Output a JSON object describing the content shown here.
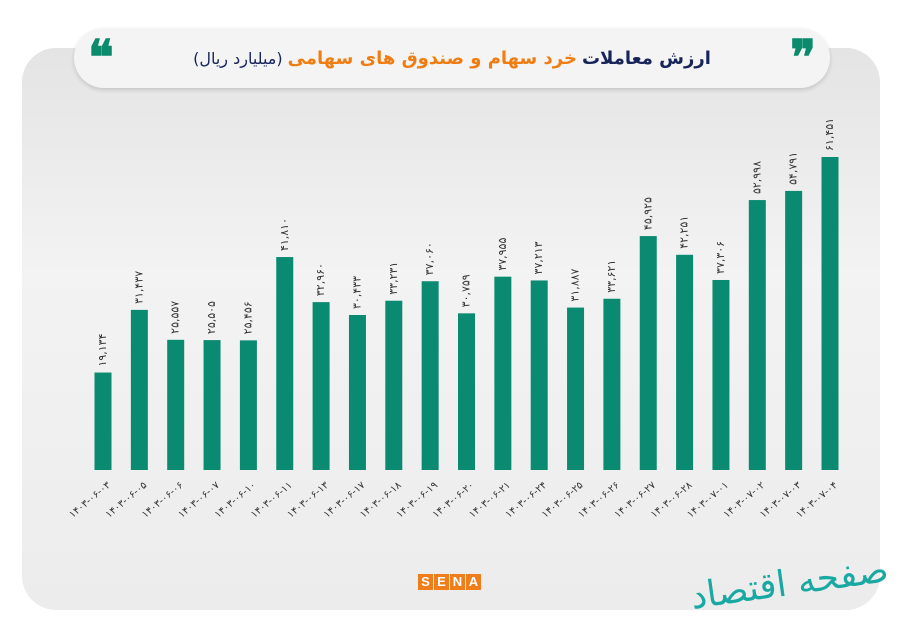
{
  "header": {
    "title_part1": "ارزش معاملات",
    "title_part2": "خرد سهام و صندوق های سهامی",
    "unit": "(میلیارد ریال)"
  },
  "colors": {
    "bar": "#0b8a72",
    "title_dark": "#16245a",
    "title_orange": "#f07d12"
  },
  "chart_data": {
    "type": "bar",
    "title": "ارزش معاملات خرد سهام و صندوق های سهامی (میلیارد ریال)",
    "categories": [
      "۱۴۰۳-۰۶-۰۳",
      "۱۴۰۳-۰۶-۰۵",
      "۱۴۰۳-۰۶-۰۶",
      "۱۴۰۳-۰۶-۰۷",
      "۱۴۰۳-۰۶-۱۰",
      "۱۴۰۳-۰۶-۱۱",
      "۱۴۰۳-۰۶-۱۳",
      "۱۴۰۳-۰۶-۱۷",
      "۱۴۰۳-۰۶-۱۸",
      "۱۴۰۳-۰۶-۱۹",
      "۱۴۰۳-۰۶-۲۰",
      "۱۴۰۳-۰۶-۲۱",
      "۱۴۰۳-۰۶-۲۴",
      "۱۴۰۳-۰۶-۲۵",
      "۱۴۰۳-۰۶-۲۶",
      "۱۴۰۳-۰۶-۲۷",
      "۱۴۰۳-۰۶-۲۸",
      "۱۴۰۳-۰۷-۰۱",
      "۱۴۰۳-۰۷-۰۲",
      "۱۴۰۳-۰۷-۰۳",
      "۱۴۰۳-۰۷-۰۴"
    ],
    "values": [
      19134,
      31437,
      25557,
      25505,
      25456,
      41810,
      32960,
      30433,
      33231,
      37060,
      30759,
      37955,
      37213,
      31887,
      33621,
      45925,
      42251,
      37306,
      52998,
      54791,
      61451
    ],
    "value_labels": [
      "۱۹,۱۳۴",
      "۳۱,۴۳۷",
      "۲۵,۵۵۷",
      "۲۵,۵۰۵",
      "۲۵,۴۵۶",
      "۴۱,۸۱۰",
      "۳۲,۹۶۰",
      "۳۰,۴۳۳",
      "۳۳,۲۳۱",
      "۳۷,۰۶۰",
      "۳۰,۷۵۹",
      "۳۷,۹۵۵",
      "۳۷,۲۱۳",
      "۳۱,۸۸۷",
      "۳۳,۶۲۱",
      "۴۵,۹۲۵",
      "۴۲,۲۵۱",
      "۳۷,۳۰۶",
      "۵۲,۹۹۸",
      "۵۴,۷۹۱",
      "۶۱,۴۵۱"
    ],
    "ylim": [
      0,
      65000
    ],
    "grid": false,
    "legend": "none"
  },
  "footer": {
    "logo": "SENA",
    "watermark": "صفحه اقتصاد"
  }
}
